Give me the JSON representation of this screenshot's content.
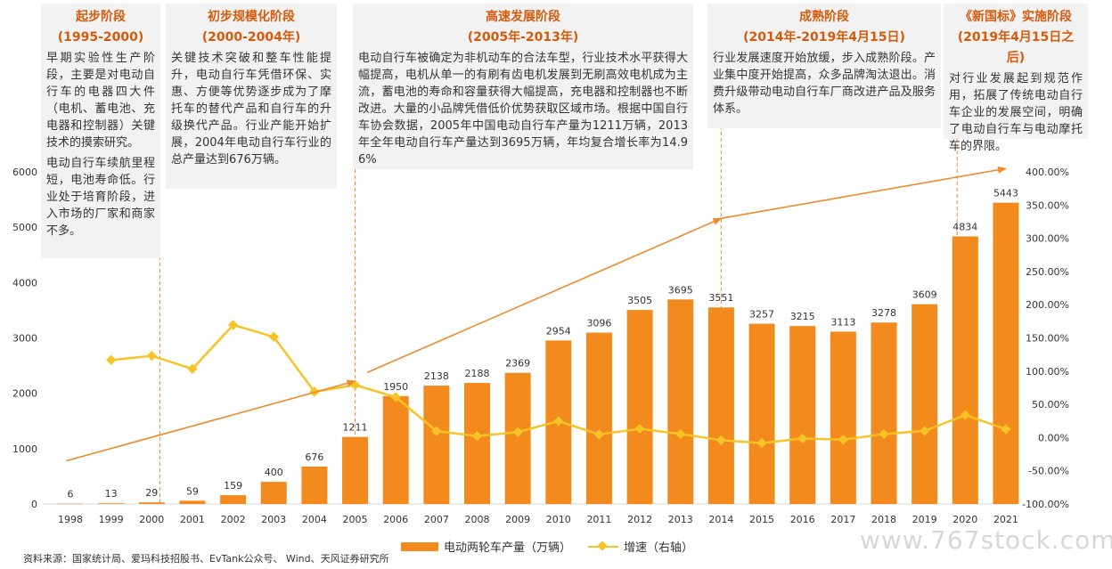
{
  "chart_data": {
    "type": "bar",
    "categories": [
      "1998",
      "1999",
      "2000",
      "2001",
      "2002",
      "2003",
      "2004",
      "2005",
      "2006",
      "2007",
      "2008",
      "2009",
      "2010",
      "2011",
      "2012",
      "2013",
      "2014",
      "2015",
      "2016",
      "2017",
      "2018",
      "2019",
      "2020",
      "2021"
    ],
    "series": [
      {
        "name": "电动两轮车产量（万辆）",
        "type": "bar",
        "axis": "left",
        "color": "#f28a1e",
        "values": [
          6,
          13,
          29,
          59,
          159,
          400,
          676,
          1211,
          1950,
          2138,
          2188,
          2369,
          2954,
          3096,
          3505,
          3695,
          3551,
          3257,
          3215,
          3113,
          3278,
          3609,
          4834,
          5443
        ]
      },
      {
        "name": "增速（右轴）",
        "type": "line",
        "axis": "right",
        "color": "#f7c325",
        "values": [
          null,
          116.7,
          123.1,
          103.4,
          169.5,
          151.6,
          69.0,
          79.1,
          61.0,
          9.6,
          2.3,
          8.3,
          24.7,
          4.8,
          13.2,
          5.4,
          -3.9,
          -8.3,
          -1.3,
          -3.2,
          5.3,
          10.1,
          33.9,
          12.6
        ]
      }
    ],
    "ylim": [
      0,
      6000
    ],
    "yticks": [
      "0",
      "1000",
      "2000",
      "3000",
      "4000",
      "5000",
      "6000"
    ],
    "y2lim": [
      -100,
      400
    ],
    "y2ticks": [
      "-100.00%",
      "-50.00%",
      "0.00%",
      "50.00%",
      "100.00%",
      "150.00%",
      "200.00%",
      "250.00%",
      "300.00%",
      "350.00%",
      "400.00%"
    ],
    "trend_arrows": [
      {
        "from": {
          "x": "1997.9",
          "y": -35
        },
        "to": {
          "x": "2005",
          "y": 85
        }
      },
      {
        "from": {
          "x": "2005.3",
          "y": 98
        },
        "to": {
          "x": "2014",
          "y": 330
        }
      },
      {
        "from": {
          "x": "2014",
          "y": 330
        },
        "to": {
          "x": "2021",
          "y": 405
        }
      }
    ],
    "stage_dividers": [
      "2000",
      "2005",
      "2014",
      "2019"
    ],
    "grid": false,
    "legend_position": "bottom"
  },
  "stages": [
    {
      "title": "起步阶段",
      "period": "(1995-2000)",
      "desc": [
        "早期实验性生产阶段，主要是对电动自行车的电器四大件（电机、蓄电池、充电器和控制器）关键技术的摸索研究。",
        "电动自行车续航里程短，电池寿命低。行业处于培育阶段，进入市场的厂家和商家不多。"
      ]
    },
    {
      "title": "初步规模化阶段",
      "period": "(2000-2004年)",
      "desc": [
        "关键技术突破和整车性能提升，电动自行车凭借环保、实惠、方便等优势逐步成为了摩托车的替代产品和自行车的升级换代产品。行业产能开始扩展，2004年电动自行车行业的总产量达到676万辆。"
      ]
    },
    {
      "title": "高速发展阶段",
      "period": "(2005年-2013年)",
      "desc": [
        "电动自行车被确定为非机动车的合法车型，行业技术水平获得大幅提高，电机从单一的有刷有齿电机发展到无刷高效电机成为主流，蓄电池的寿命和容量获得大幅提高，充电器和控制器也不断改进。大量的小品牌凭借低价优势获取区域市场。根据中国自行车协会数据，2005年中国电动自行车产量为1211万辆，2013年全年电动自行车产量达到3695万辆，年均复合增长率为14.96%"
      ]
    },
    {
      "title": "成熟阶段",
      "period": "(2014年-2019年4月15日)",
      "desc": [
        "行业发展速度开始放缓，步入成熟阶段。产业集中度开始提高，众多品牌淘汰退出。消费升级带动电动自行车厂商改进产品及服务体系。"
      ]
    },
    {
      "title": "《新国标》实施阶段",
      "period": "(2019年4月15日之后)",
      "desc": [
        "对行业发展起到规范作用，拓展了传统电动自行车企业的发展空间，明确了电动自行车与电动摩托车的界限。"
      ]
    }
  ],
  "legend": {
    "bar_label": "电动两轮车产量（万辆）",
    "line_label": "增速（右轴）"
  },
  "source": "资料来源：国家统计局、爱玛科技招股书、EvTank公众号、 Wind、天风证券研究所",
  "watermark": "www.767stock.com",
  "colors": {
    "bar": "#f28a1e",
    "line": "#f7c325",
    "arrow": "#ef8a2a",
    "stage_text": "#d65a0c",
    "box_bg": "#f2f2f2"
  }
}
